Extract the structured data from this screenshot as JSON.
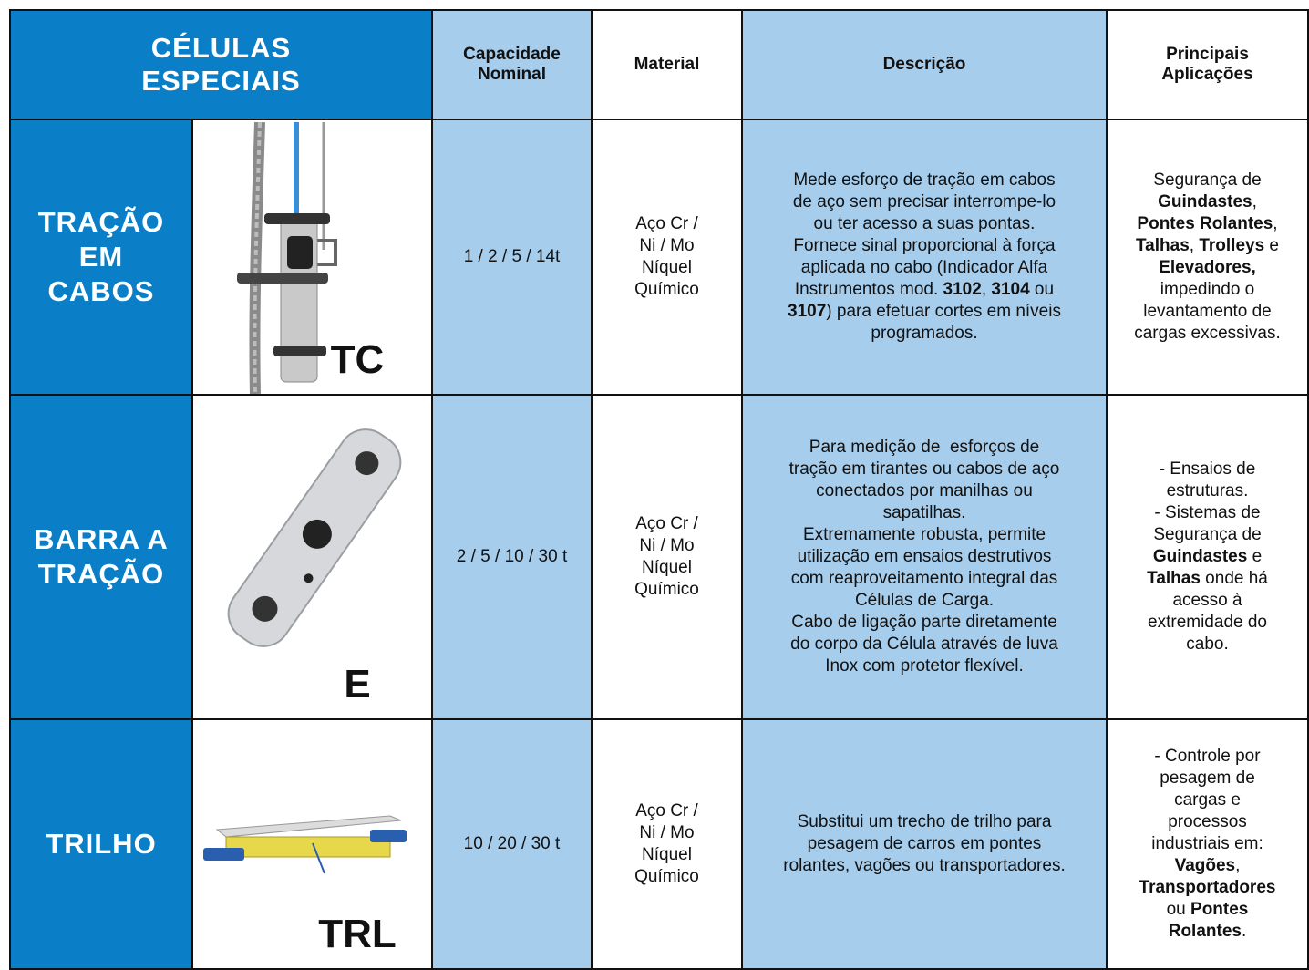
{
  "header": {
    "title": [
      "CÉLULAS",
      "ESPECIAIS"
    ],
    "columns": [
      [
        "Capacidade",
        "Nominal"
      ],
      [
        "Material"
      ],
      [
        "Descrição"
      ],
      [
        "Principais",
        "Aplicações"
      ]
    ]
  },
  "table": {
    "rows": [
      {
        "name": [
          "TRAÇÃO",
          "EM",
          "CABOS"
        ],
        "code": "TC",
        "capacity": "1 / 2 / 5 / 14t",
        "material": [
          "Aço Cr /",
          "Ni / Mo",
          "Níquel",
          "Químico"
        ],
        "description": [
          [
            "Mede esforço de tração em cabos"
          ],
          [
            "de aço sem precisar interrompe-lo"
          ],
          [
            "ou ter acesso a suas pontas."
          ],
          [
            "Fornece sinal proporcional à força"
          ],
          [
            "aplicada no cabo (Indicador Alfa"
          ],
          [
            "Instrumentos mod. ",
            {
              "text": "3102",
              "bold": true
            },
            ", ",
            {
              "text": "3104",
              "bold": true
            },
            " ou"
          ],
          [
            {
              "text": "3107",
              "bold": true
            },
            ") para efetuar cortes em níveis"
          ],
          [
            "programados."
          ]
        ],
        "applications": [
          [
            "Segurança de"
          ],
          [
            {
              "text": "Guindastes",
              "bold": true
            },
            ","
          ],
          [
            {
              "text": "Pontes Rolantes",
              "bold": true
            },
            ","
          ],
          [
            {
              "text": "Talhas",
              "bold": true
            },
            ", ",
            {
              "text": "Trolleys",
              "bold": true
            },
            " e"
          ],
          [
            {
              "text": "Elevadores,",
              "bold": true
            }
          ],
          [
            "impedindo o"
          ],
          [
            "levantamento de"
          ],
          [
            "cargas excessivas."
          ]
        ]
      },
      {
        "name": [
          "BARRA A",
          "TRAÇÃO"
        ],
        "code": "E",
        "capacity": "2 / 5 / 10 / 30 t",
        "material": [
          "Aço Cr /",
          "Ni / Mo",
          "Níquel",
          "Químico"
        ],
        "description": [
          [
            "Para medição de  esforços de"
          ],
          [
            "tração em tirantes ou cabos de aço"
          ],
          [
            "conectados por manilhas ou"
          ],
          [
            "sapatilhas."
          ],
          [
            "Extremamente robusta, permite"
          ],
          [
            "utilização em ensaios destrutivos"
          ],
          [
            "com reaproveitamento integral das"
          ],
          [
            "Células de Carga."
          ],
          [
            "Cabo de ligação parte diretamente"
          ],
          [
            "do corpo da Célula através de luva"
          ],
          [
            "Inox com protetor flexível."
          ]
        ],
        "applications": [
          [
            "- Ensaios de"
          ],
          [
            "estruturas."
          ],
          [
            "- Sistemas de"
          ],
          [
            "Segurança de"
          ],
          [
            {
              "text": "Guindastes",
              "bold": true
            },
            " e"
          ],
          [
            {
              "text": "Talhas",
              "bold": true
            },
            " onde há"
          ],
          [
            "acesso à"
          ],
          [
            "extremidade do"
          ],
          [
            "cabo."
          ]
        ]
      },
      {
        "name": [
          "TRILHO"
        ],
        "code": "TRL",
        "capacity": "10 / 20 / 30 t",
        "material": [
          "Aço Cr /",
          "Ni / Mo",
          "Níquel",
          "Químico"
        ],
        "description": [
          [
            "Substitui um trecho de trilho para"
          ],
          [
            "pesagem de carros em pontes"
          ],
          [
            "rolantes, vagões ou transportadores."
          ]
        ],
        "applications": [
          [
            "- Controle por"
          ],
          [
            "pesagem de"
          ],
          [
            "cargas e"
          ],
          [
            "processos"
          ],
          [
            "industriais em:"
          ],
          [
            {
              "text": "Vagões",
              "bold": true
            },
            ","
          ],
          [
            {
              "text": "Transportadores",
              "bold": true
            }
          ],
          [
            "ou ",
            {
              "text": "Pontes",
              "bold": true
            }
          ],
          [
            {
              "text": "Rolantes",
              "bold": true
            },
            "."
          ]
        ]
      }
    ]
  }
}
